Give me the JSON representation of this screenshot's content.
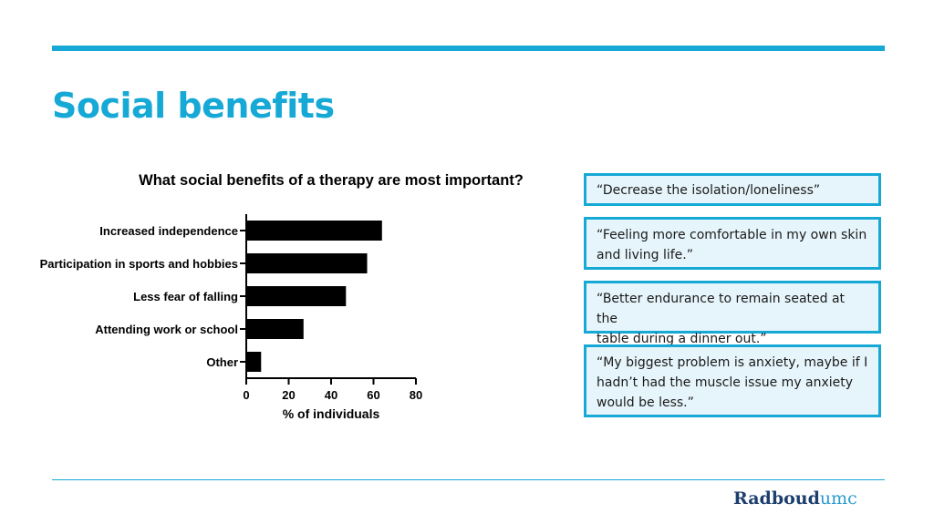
{
  "slide": {
    "title": "Social benefits"
  },
  "chart_data": {
    "type": "bar",
    "orientation": "horizontal",
    "title": "What social benefits of a therapy are most important?",
    "xlabel": "% of individuals",
    "ylabel": "",
    "categories": [
      "Increased independence",
      "Participation in sports and hobbies",
      "Less fear of falling",
      "Attending work or school",
      "Other"
    ],
    "values": [
      64,
      57,
      47,
      27,
      7
    ],
    "xlim": [
      0,
      80
    ],
    "xticks": [
      "0",
      "20",
      "40",
      "60",
      "80"
    ],
    "bar_color": "#000000",
    "grid": false
  },
  "quotes": [
    {
      "lines": [
        "“Decrease the isolation/loneliness”"
      ]
    },
    {
      "lines": [
        "“Feeling more comfortable in my own skin",
        "and living life.”"
      ]
    },
    {
      "lines": [
        "“Better endurance to remain seated at the",
        "table during a dinner out.”"
      ]
    },
    {
      "lines": [
        "“My biggest problem is anxiety, maybe if I",
        "hadn’t had the muscle issue my anxiety",
        "would be less.”"
      ]
    }
  ],
  "logo": {
    "bold": "Radboud",
    "light": "umc"
  },
  "colors": {
    "accent": "#16a9d6",
    "quote_bg": "#e6f5fb",
    "logo_dark": "#1d3f6e"
  }
}
